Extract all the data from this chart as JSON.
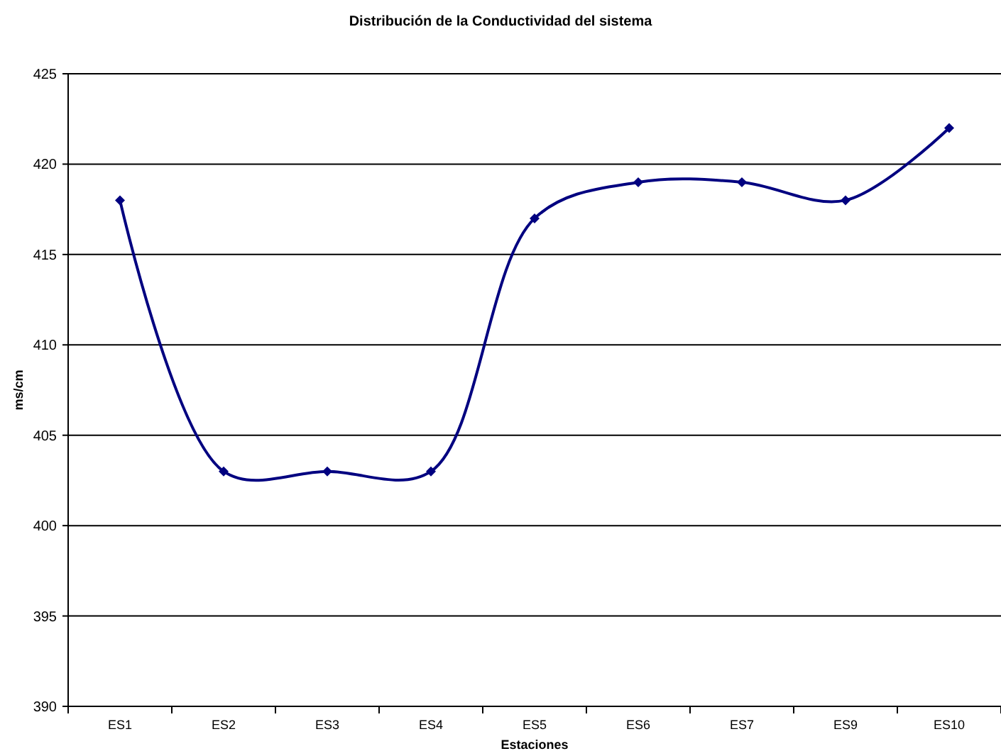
{
  "chart_data": {
    "type": "line",
    "title": "Distribución de la Conductividad del sistema",
    "xlabel": "Estaciones",
    "ylabel": "ms/cm",
    "categories": [
      "ES1",
      "ES2",
      "ES3",
      "ES4",
      "ES5",
      "ES6",
      "ES7",
      "ES9",
      "ES10"
    ],
    "series": [
      {
        "color": "#000080",
        "values": [
          418,
          403,
          403,
          403,
          417,
          419,
          419,
          418,
          422
        ]
      }
    ],
    "ylim": [
      390,
      425
    ],
    "yticks": [
      390,
      395,
      400,
      405,
      410,
      415,
      420,
      425
    ],
    "grid": "y",
    "marker": "diamond",
    "line_style": "solid"
  }
}
